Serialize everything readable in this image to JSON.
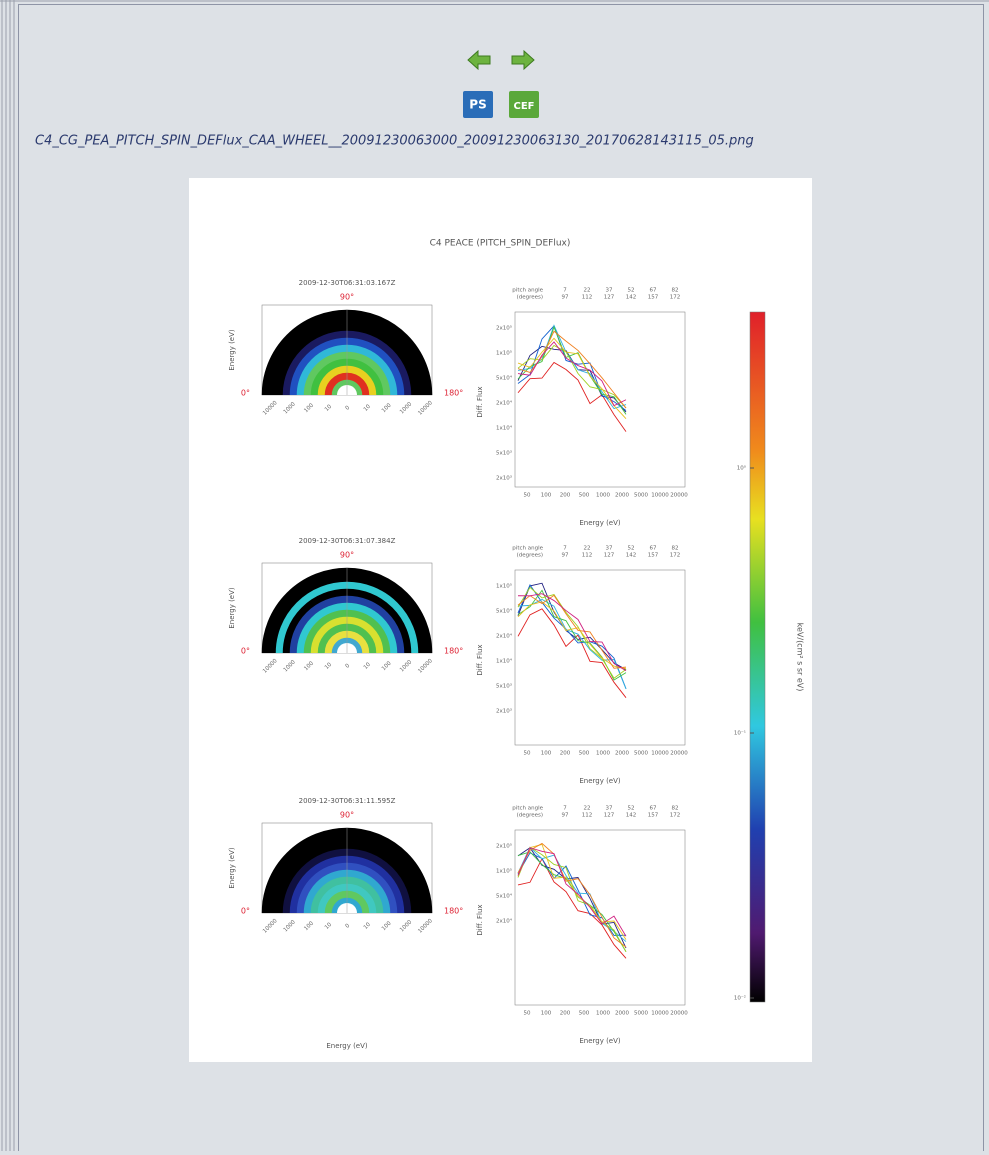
{
  "nav": {
    "ps_label": "PS",
    "cef_label": "CEF"
  },
  "filename": "C4_CG_PEA_PITCH_SPIN_DEFlux_CAA_WHEEL__20091230063000_20091230063130_20170628143115_05.png",
  "figure": {
    "title": "C4 PEACE (PITCH_SPIN_DEFlux)",
    "wheel_ylabel": "Energy (eV)",
    "wheel_xlabel": "Energy (eV)",
    "wheel_xticks": [
      "10000",
      "1000",
      "100",
      "10",
      "0",
      "10",
      "100",
      "1000",
      "10000"
    ],
    "angle_top": "90°",
    "angle_left": "0°",
    "angle_right": "180°",
    "flux_ylabel": "Diff. Flux",
    "flux_xlabel": "Energy (eV)",
    "flux_xticks": [
      "50",
      "100",
      "200",
      "500",
      "1000",
      "2000",
      "5000",
      "10000",
      "20000"
    ],
    "legend_title": [
      "pitch angle",
      "(degrees)"
    ],
    "legend_angles": [
      [
        "7",
        "22",
        "37",
        "52",
        "67",
        "82"
      ],
      [
        "97",
        "112",
        "127",
        "142",
        "157",
        "172"
      ]
    ],
    "panels": [
      {
        "time": "2009-12-30T06:31:03.167Z",
        "flux_yticks": [
          "2x10⁵",
          "1x10⁵",
          "5x10⁴",
          "2x10⁴",
          "1x10⁴",
          "5x10³",
          "2x10³"
        ]
      },
      {
        "time": "2009-12-30T06:31:07.384Z",
        "flux_yticks": [
          "1x10⁵",
          "5x10⁴",
          "2x10⁴",
          "1x10⁴",
          "5x10³",
          "2x10³"
        ]
      },
      {
        "time": "2009-12-30T06:31:11.595Z",
        "flux_yticks": [
          "2x10⁵",
          "1x10⁵",
          "5x10⁴",
          "2x10⁴"
        ]
      }
    ],
    "colorbar_label": "keV/(cm² s sr eV)",
    "colorbar_ticks": [
      "10⁰",
      "10⁻¹",
      "10⁻²"
    ]
  }
}
